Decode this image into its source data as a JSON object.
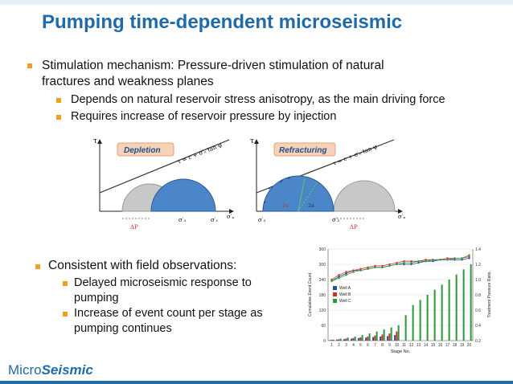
{
  "slide": {
    "title": "Pumping time-dependent microseismic",
    "bullets": [
      {
        "text1": "Stimulation mechanism: Pressure-driven stimulation of natural",
        "text2": "fractures and weakness planes"
      },
      {
        "text1": "Depends on natural reservoir stress anisotropy, as the main driving force"
      },
      {
        "text1": "Requires increase of reservoir pressure by injection"
      }
    ],
    "bullets2": [
      {
        "text1": "Consistent with field observations:"
      },
      {
        "text1": "Delayed microseismic response to",
        "text2": "pumping"
      },
      {
        "text1": "Increase of event count per stage as",
        "text2": "pumping continues"
      }
    ],
    "footer_logo": {
      "part1": "Micro",
      "part2": "Seismic"
    }
  },
  "diagram_left": {
    "label": "Depletion",
    "tau": "τ",
    "equation": "τ = c + σ′ₙ tan φ",
    "sigma_n": "σ′ₙ",
    "sigma3": "σ′₃",
    "sigma3b": "σ′₃",
    "sigma1": "σ′₁",
    "dp": "ΔP"
  },
  "diagram_right": {
    "label": "Refracturing",
    "tau": "τ",
    "equation": "τ = c + σ′ₙ tan φ",
    "sigma_n": "σ′ₙ",
    "sigma3": "σ′₃",
    "sigma2": "σ′₂",
    "sigma1": "σ′₁",
    "dp": "ΔP",
    "angle1": "2α",
    "angle2": "2α"
  },
  "chart_data": {
    "type": "bar",
    "xlabel": "Stage No.",
    "ylabel": "Cumulative Event Count",
    "y2label": "Treatment Pressure Ratio",
    "ylim": [
      0,
      360
    ],
    "y2lim": [
      0.2,
      1.4
    ],
    "yticks": [
      0,
      60,
      120,
      180,
      240,
      300,
      360
    ],
    "y2ticks": [
      0.2,
      0.4,
      0.6,
      0.8,
      1.0,
      1.2,
      1.4
    ],
    "categories": [
      "1",
      "2",
      "3",
      "4",
      "5",
      "6",
      "7",
      "8",
      "9",
      "10",
      "11",
      "12",
      "13",
      "14",
      "15",
      "16",
      "17",
      "18",
      "19",
      "20"
    ],
    "legend": [
      "Well A",
      "Well B",
      "Well C"
    ],
    "colors": {
      "wellA": "#2a4a9a",
      "wellB": "#d03030",
      "wellC": "#2a9a3a"
    },
    "series": [
      {
        "name": "Well A",
        "values": [
          2,
          4,
          6,
          8,
          10,
          12,
          14,
          16,
          18,
          22,
          0,
          0,
          0,
          0,
          0,
          0,
          0,
          0,
          0,
          0
        ]
      },
      {
        "name": "Well B",
        "values": [
          3,
          5,
          8,
          10,
          13,
          16,
          20,
          24,
          28,
          36,
          0,
          0,
          0,
          0,
          0,
          0,
          0,
          0,
          0,
          0
        ]
      },
      {
        "name": "Well C",
        "values": [
          4,
          8,
          12,
          16,
          22,
          28,
          36,
          44,
          52,
          60,
          100,
          140,
          160,
          180,
          200,
          220,
          240,
          260,
          280,
          300
        ]
      }
    ],
    "lines": [
      {
        "name": "Well A",
        "values": [
          0.98,
          1.04,
          1.08,
          1.12,
          1.12,
          1.14,
          1.16,
          1.16,
          1.18,
          1.2,
          1.2,
          1.2,
          1.22,
          1.24,
          1.24,
          1.26,
          1.26,
          1.26,
          1.26,
          1.28
        ]
      },
      {
        "name": "Well B",
        "values": [
          1.0,
          1.06,
          1.1,
          1.12,
          1.14,
          1.16,
          1.18,
          1.18,
          1.2,
          1.22,
          1.24,
          1.24,
          1.24,
          1.26,
          1.26,
          1.26,
          1.28,
          1.28,
          1.28,
          1.3
        ]
      },
      {
        "name": "Well C",
        "values": [
          0.98,
          1.02,
          1.06,
          1.1,
          1.12,
          1.14,
          1.16,
          1.16,
          1.18,
          1.2,
          1.22,
          1.22,
          1.24,
          1.24,
          1.26,
          1.26,
          1.26,
          1.28,
          1.28,
          1.32
        ]
      }
    ]
  }
}
